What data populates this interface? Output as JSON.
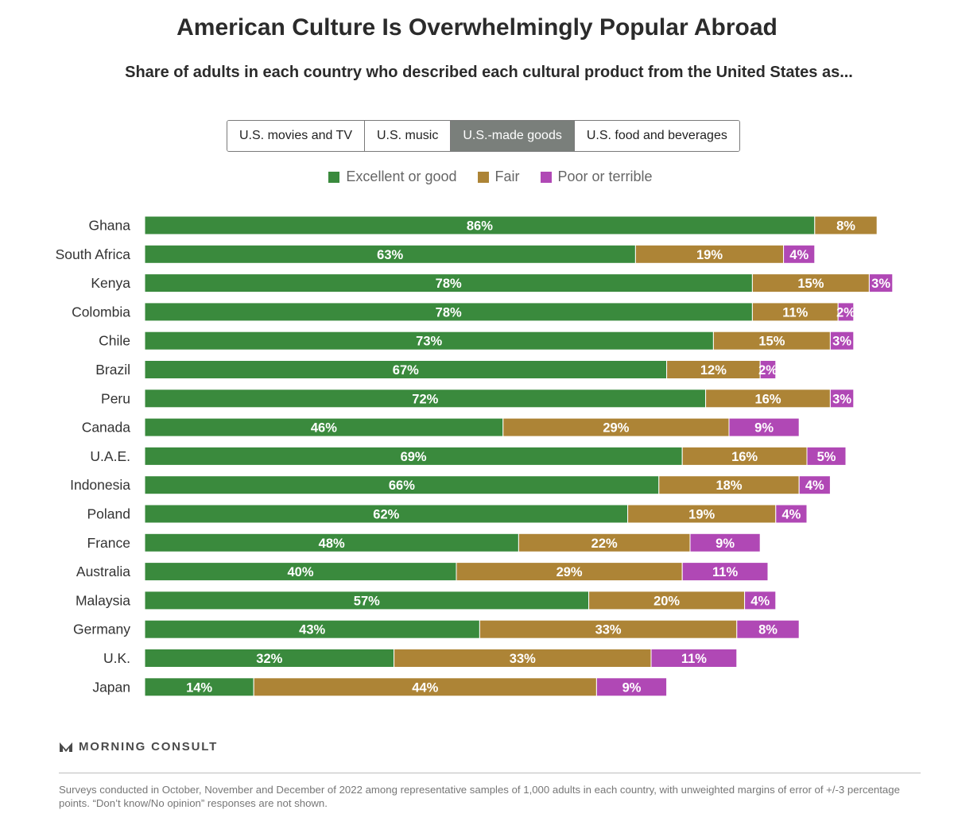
{
  "title": "American Culture Is Overwhelmingly Popular Abroad",
  "subtitle": "Share of adults in each country who described each cultural product from the United States as...",
  "tabs": [
    {
      "label": "U.S. movies and TV",
      "active": false
    },
    {
      "label": "U.S. music",
      "active": false
    },
    {
      "label": "U.S.-made goods",
      "active": true
    },
    {
      "label": "U.S. food and beverages",
      "active": false
    }
  ],
  "legend": [
    {
      "label": "Excellent or good",
      "color": "#3a8a3d"
    },
    {
      "label": "Fair",
      "color": "#ad8436"
    },
    {
      "label": "Poor or terrible",
      "color": "#b048b5"
    }
  ],
  "chart_data": {
    "type": "bar",
    "orientation": "horizontal",
    "stacked": true,
    "categories": [
      "Ghana",
      "South Africa",
      "Kenya",
      "Colombia",
      "Chile",
      "Brazil",
      "Peru",
      "Canada",
      "U.A.E.",
      "Indonesia",
      "Poland",
      "France",
      "Australia",
      "Malaysia",
      "Germany",
      "U.K.",
      "Japan"
    ],
    "series": [
      {
        "name": "Excellent or good",
        "color": "#3a8a3d",
        "values": [
          86,
          63,
          78,
          78,
          73,
          67,
          72,
          46,
          69,
          66,
          62,
          48,
          40,
          57,
          43,
          32,
          14
        ]
      },
      {
        "name": "Fair",
        "color": "#ad8436",
        "values": [
          8,
          19,
          15,
          11,
          15,
          12,
          16,
          29,
          16,
          18,
          19,
          22,
          29,
          20,
          33,
          33,
          44
        ]
      },
      {
        "name": "Poor or terrible",
        "color": "#b048b5",
        "values": [
          0,
          4,
          3,
          2,
          3,
          2,
          3,
          9,
          5,
          4,
          4,
          9,
          11,
          4,
          8,
          11,
          9
        ]
      }
    ],
    "value_suffix": "%",
    "xlim": [
      0,
      100
    ],
    "grid": false,
    "legend_position": "top"
  },
  "brand": {
    "name": "MORNING CONSULT",
    "mark": "·"
  },
  "footnote": "Surveys conducted in October, November and December of 2022 among representative samples of 1,000 adults in each country, with unweighted margins of error of +/-3 percentage points. “Don’t know/No opinion” responses are not shown."
}
